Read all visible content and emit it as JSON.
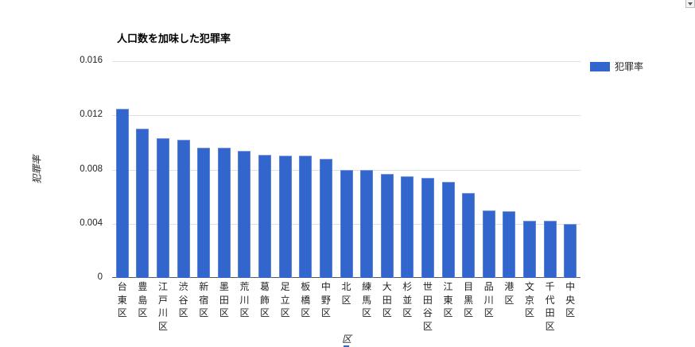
{
  "chart_data": {
    "type": "bar",
    "title": "人口数を加味した犯罪率",
    "xlabel": "区",
    "ylabel": "犯罪率",
    "ylim": [
      0,
      0.016
    ],
    "yticks": [
      "0",
      "0.004",
      "0.008",
      "0.012",
      "0.016"
    ],
    "grid": true,
    "legend_position": "right",
    "categories": [
      "台東区",
      "豊島区",
      "江戸川区",
      "渋谷区",
      "新宿区",
      "墨田区",
      "荒川区",
      "葛飾区",
      "足立区",
      "板橋区",
      "中野区",
      "北区",
      "練馬区",
      "大田区",
      "杉並区",
      "世田谷区",
      "江東区",
      "目黒区",
      "品川区",
      "港区",
      "文京区",
      "千代田区",
      "中央区"
    ],
    "series": [
      {
        "name": "犯罪率",
        "color": "#3366cc",
        "values": [
          0.0125,
          0.011,
          0.0103,
          0.0102,
          0.0096,
          0.0096,
          0.0094,
          0.0091,
          0.009,
          0.009,
          0.0088,
          0.008,
          0.008,
          0.0077,
          0.0075,
          0.0074,
          0.0071,
          0.0063,
          0.005,
          0.0049,
          0.0042,
          0.0042,
          0.004
        ]
      }
    ]
  },
  "chart": {
    "title": "人口数を加味した犯罪率",
    "x_axis_title": "区",
    "y_axis_title": "犯罪率",
    "legend_label": "犯罪率",
    "bar_color": "#3366cc"
  }
}
